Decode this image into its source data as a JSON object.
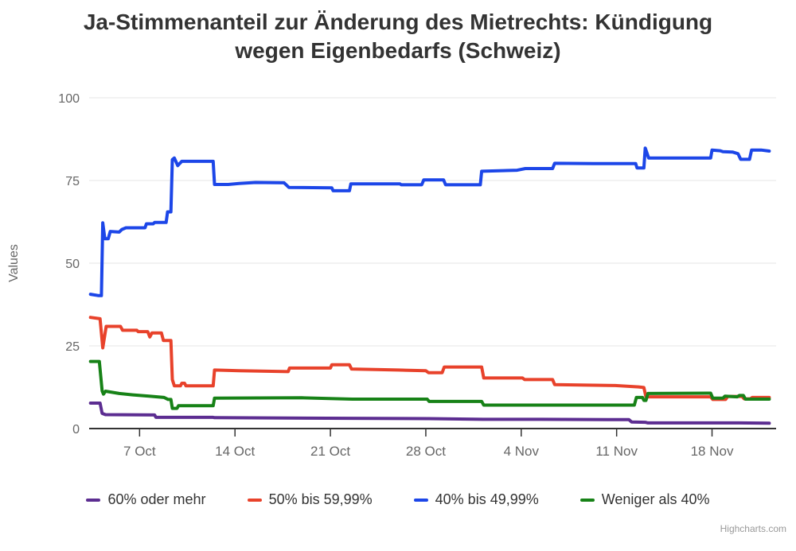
{
  "chart_data": {
    "type": "line",
    "title": "Ja-Stimmenanteil zur Änderung des Mietrechts: Kündigung wegen Eigenbedarfs (Schweiz)",
    "xlabel": "",
    "ylabel": "Values",
    "ylim": [
      0,
      100
    ],
    "yticks": [
      0,
      25,
      50,
      75,
      100
    ],
    "x_unit": "days since 3 Oct",
    "xlim": [
      0.3,
      50.7
    ],
    "xticks": [
      {
        "pos": 4,
        "label": "7 Oct"
      },
      {
        "pos": 11,
        "label": "14 Oct"
      },
      {
        "pos": 18,
        "label": "21 Oct"
      },
      {
        "pos": 25,
        "label": "28 Oct"
      },
      {
        "pos": 32,
        "label": "4 Nov"
      },
      {
        "pos": 39,
        "label": "11 Nov"
      },
      {
        "pos": 46,
        "label": "18 Nov"
      }
    ],
    "grid": "horizontal",
    "legend_position": "bottom",
    "credits": "Highcharts.com",
    "colors": {
      "grid": "#e6e6e6",
      "axis_line": "#333333",
      "tick_label": "#666666",
      "title": "#333333",
      "legend_text": "#333333",
      "credits_text": "#999999"
    },
    "series": [
      {
        "name": "60% oder mehr",
        "color": "#5c2d91",
        "points": [
          [
            0.4,
            7.7
          ],
          [
            1.1,
            7.7
          ],
          [
            1.25,
            4.6
          ],
          [
            1.5,
            4.2
          ],
          [
            5.1,
            4.1
          ],
          [
            5.2,
            3.4
          ],
          [
            9.4,
            3.4
          ],
          [
            9.5,
            3.3
          ],
          [
            19.5,
            3.1
          ],
          [
            25.2,
            3.0
          ],
          [
            29.2,
            2.8
          ],
          [
            33.5,
            2.8
          ],
          [
            39.9,
            2.7
          ],
          [
            40.1,
            2.0
          ],
          [
            41.1,
            1.9
          ],
          [
            41.3,
            1.7
          ],
          [
            48.0,
            1.7
          ],
          [
            50.2,
            1.6
          ]
        ]
      },
      {
        "name": "50% bis 59,99%",
        "color": "#e8422b",
        "points": [
          [
            0.4,
            33.6
          ],
          [
            1.1,
            33.2
          ],
          [
            1.3,
            24.4
          ],
          [
            1.55,
            30.9
          ],
          [
            2.6,
            30.9
          ],
          [
            2.75,
            29.7
          ],
          [
            3.8,
            29.7
          ],
          [
            3.9,
            29.3
          ],
          [
            4.6,
            29.3
          ],
          [
            4.75,
            27.7
          ],
          [
            4.9,
            28.9
          ],
          [
            5.6,
            28.9
          ],
          [
            5.75,
            26.6
          ],
          [
            6.3,
            26.6
          ],
          [
            6.4,
            14.8
          ],
          [
            6.55,
            12.9
          ],
          [
            7.0,
            12.9
          ],
          [
            7.1,
            13.7
          ],
          [
            7.3,
            13.7
          ],
          [
            7.4,
            12.9
          ],
          [
            9.4,
            12.9
          ],
          [
            9.5,
            17.7
          ],
          [
            11.3,
            17.5
          ],
          [
            14.9,
            17.2
          ],
          [
            15.0,
            18.3
          ],
          [
            18.0,
            18.3
          ],
          [
            18.1,
            19.3
          ],
          [
            19.4,
            19.3
          ],
          [
            19.55,
            18.0
          ],
          [
            23.0,
            17.7
          ],
          [
            25.0,
            17.5
          ],
          [
            25.2,
            16.9
          ],
          [
            26.2,
            16.9
          ],
          [
            26.35,
            18.6
          ],
          [
            29.1,
            18.6
          ],
          [
            29.25,
            15.3
          ],
          [
            32.1,
            15.3
          ],
          [
            32.25,
            14.8
          ],
          [
            34.3,
            14.8
          ],
          [
            34.45,
            13.3
          ],
          [
            38.9,
            13.0
          ],
          [
            40.6,
            12.6
          ],
          [
            41.0,
            12.4
          ],
          [
            41.15,
            9.6
          ],
          [
            45.9,
            9.6
          ],
          [
            46.05,
            8.8
          ],
          [
            47.0,
            8.8
          ],
          [
            47.15,
            9.7
          ],
          [
            48.2,
            9.7
          ],
          [
            48.35,
            9.0
          ],
          [
            48.8,
            9.0
          ],
          [
            48.95,
            9.4
          ],
          [
            50.2,
            9.4
          ]
        ]
      },
      {
        "name": "40% bis 49,99%",
        "color": "#1c46e8",
        "points": [
          [
            0.4,
            40.6
          ],
          [
            1.0,
            40.2
          ],
          [
            1.2,
            40.2
          ],
          [
            1.3,
            62.2
          ],
          [
            1.45,
            57.4
          ],
          [
            1.7,
            57.4
          ],
          [
            1.85,
            59.6
          ],
          [
            2.5,
            59.4
          ],
          [
            2.7,
            60.2
          ],
          [
            3.0,
            60.7
          ],
          [
            4.4,
            60.7
          ],
          [
            4.5,
            61.9
          ],
          [
            5.0,
            61.9
          ],
          [
            5.1,
            62.3
          ],
          [
            5.95,
            62.3
          ],
          [
            6.05,
            65.5
          ],
          [
            6.3,
            65.5
          ],
          [
            6.4,
            81.3
          ],
          [
            6.55,
            81.8
          ],
          [
            6.8,
            79.5
          ],
          [
            7.1,
            80.8
          ],
          [
            9.4,
            80.8
          ],
          [
            9.5,
            73.8
          ],
          [
            10.5,
            73.8
          ],
          [
            11.3,
            74.1
          ],
          [
            12.5,
            74.4
          ],
          [
            14.6,
            74.3
          ],
          [
            14.95,
            72.9
          ],
          [
            18.1,
            72.8
          ],
          [
            18.2,
            71.9
          ],
          [
            19.4,
            71.9
          ],
          [
            19.5,
            74.0
          ],
          [
            23.1,
            74.0
          ],
          [
            23.2,
            73.7
          ],
          [
            24.7,
            73.7
          ],
          [
            24.85,
            75.2
          ],
          [
            26.3,
            75.2
          ],
          [
            26.45,
            73.7
          ],
          [
            29.0,
            73.7
          ],
          [
            29.1,
            77.8
          ],
          [
            31.7,
            78.1
          ],
          [
            32.3,
            78.6
          ],
          [
            34.3,
            78.6
          ],
          [
            34.45,
            80.2
          ],
          [
            37.3,
            80.1
          ],
          [
            40.4,
            80.1
          ],
          [
            40.5,
            78.8
          ],
          [
            41.0,
            78.8
          ],
          [
            41.1,
            84.8
          ],
          [
            41.35,
            81.8
          ],
          [
            45.9,
            81.8
          ],
          [
            46.0,
            84.2
          ],
          [
            46.6,
            84.0
          ],
          [
            46.8,
            83.7
          ],
          [
            47.5,
            83.6
          ],
          [
            47.9,
            83.1
          ],
          [
            48.1,
            81.4
          ],
          [
            48.75,
            81.4
          ],
          [
            48.9,
            84.2
          ],
          [
            49.6,
            84.2
          ],
          [
            50.2,
            83.9
          ]
        ]
      },
      {
        "name": "Weniger als 40%",
        "color": "#178217",
        "points": [
          [
            0.4,
            20.3
          ],
          [
            1.05,
            20.3
          ],
          [
            1.25,
            11.4
          ],
          [
            1.35,
            10.4
          ],
          [
            1.5,
            11.3
          ],
          [
            2.5,
            10.6
          ],
          [
            3.5,
            10.2
          ],
          [
            4.7,
            9.8
          ],
          [
            5.8,
            9.4
          ],
          [
            6.1,
            8.8
          ],
          [
            6.3,
            8.8
          ],
          [
            6.4,
            6.1
          ],
          [
            6.75,
            6.1
          ],
          [
            6.85,
            6.9
          ],
          [
            9.4,
            6.9
          ],
          [
            9.5,
            9.2
          ],
          [
            15.9,
            9.3
          ],
          [
            19.6,
            8.9
          ],
          [
            25.1,
            8.9
          ],
          [
            25.25,
            8.2
          ],
          [
            29.1,
            8.2
          ],
          [
            29.25,
            7.1
          ],
          [
            40.3,
            7.1
          ],
          [
            40.45,
            9.4
          ],
          [
            40.9,
            9.4
          ],
          [
            41.0,
            8.5
          ],
          [
            41.15,
            8.5
          ],
          [
            41.3,
            10.6
          ],
          [
            45.9,
            10.7
          ],
          [
            46.05,
            9.2
          ],
          [
            46.8,
            9.2
          ],
          [
            46.95,
            9.8
          ],
          [
            47.85,
            9.6
          ],
          [
            48.0,
            10.0
          ],
          [
            48.3,
            10.0
          ],
          [
            48.45,
            8.9
          ],
          [
            50.2,
            8.9
          ]
        ]
      }
    ]
  }
}
